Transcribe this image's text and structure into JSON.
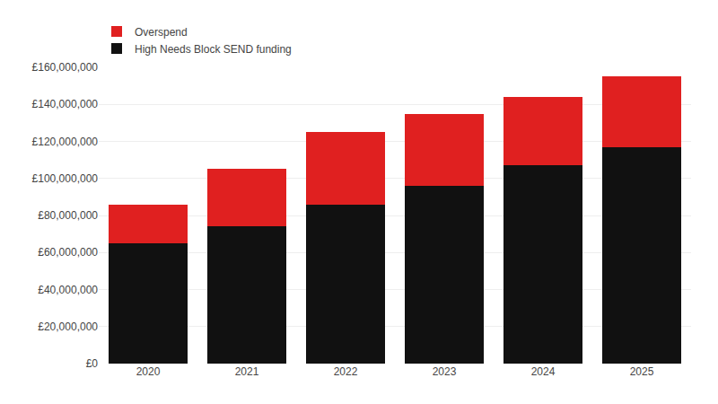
{
  "chart_data": {
    "type": "bar",
    "stacked": true,
    "categories": [
      "2020",
      "2021",
      "2022",
      "2023",
      "2024",
      "2025"
    ],
    "series": [
      {
        "name": "High Needs Block SEND funding",
        "color": "#111111",
        "values": [
          65000000,
          74000000,
          86000000,
          96000000,
          107000000,
          117000000
        ]
      },
      {
        "name": "Overspend",
        "color": "#e02020",
        "values": [
          21000000,
          31000000,
          39000000,
          39000000,
          37000000,
          38000000
        ]
      }
    ],
    "ylim": [
      0,
      160000000
    ],
    "yticks": [
      {
        "value": 0,
        "label": "£0"
      },
      {
        "value": 20000000,
        "label": "£20,000,000"
      },
      {
        "value": 40000000,
        "label": "£40,000,000"
      },
      {
        "value": 60000000,
        "label": "£60,000,000"
      },
      {
        "value": 80000000,
        "label": "£80,000,000"
      },
      {
        "value": 100000000,
        "label": "£100,000,000"
      },
      {
        "value": 120000000,
        "label": "£120,000,000"
      },
      {
        "value": 140000000,
        "label": "£140,000,000"
      },
      {
        "value": 160000000,
        "label": "£160,000,000"
      }
    ],
    "grid": true,
    "legend": "upper left"
  }
}
